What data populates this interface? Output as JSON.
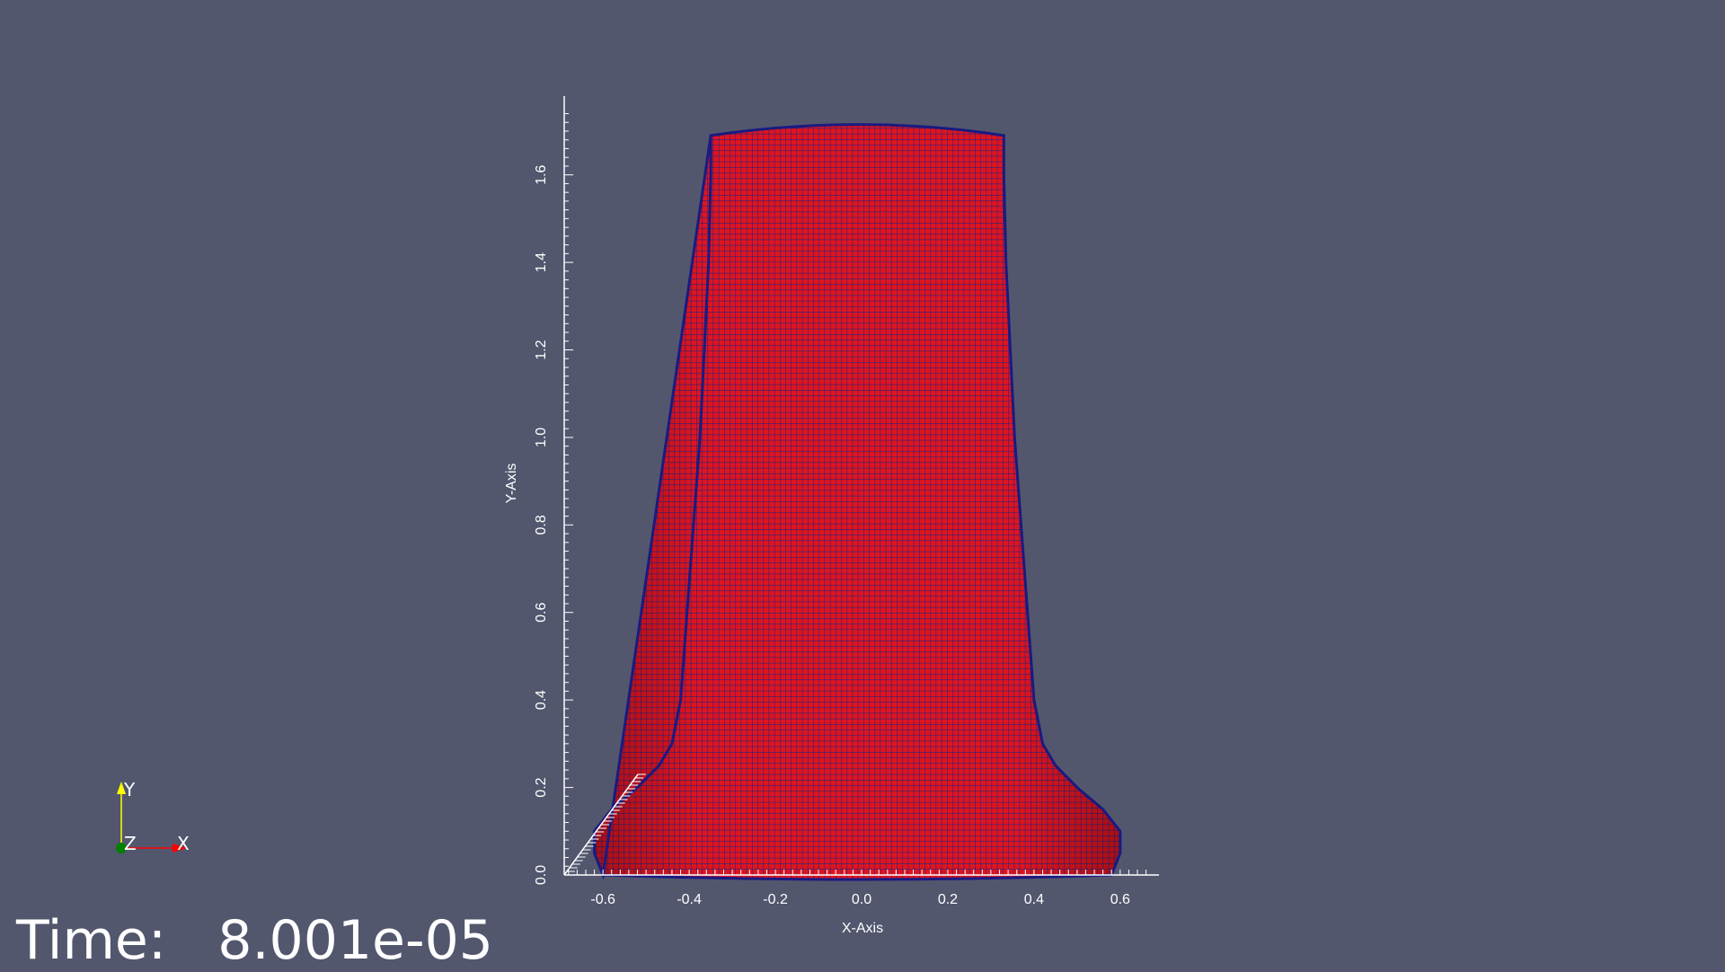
{
  "scene": {
    "background": "#52576e",
    "surface_color": "#e0141e",
    "mesh_line_color": "#1e1e7a",
    "axes_color": "#ffffff"
  },
  "axes": {
    "x_title": "X-Axis",
    "y_title": "Y-Axis",
    "x_tick_labels": [
      "-0.6",
      "-0.4",
      "-0.2",
      "0.0",
      "0.2",
      "0.4",
      "0.6"
    ],
    "y_tick_labels": [
      "0.0",
      "0.2",
      "0.4",
      "0.6",
      "0.8",
      "1.0",
      "1.2",
      "1.4",
      "1.6"
    ],
    "x_range": [
      -0.69,
      0.69
    ],
    "y_range": [
      0.0,
      1.78
    ]
  },
  "orientation_axes": {
    "x_label": "X",
    "y_label": "Y",
    "z_label": "Z",
    "x_color": "#ff0000",
    "y_color": "#ffff00",
    "z_color": "#008000"
  },
  "time": {
    "label": "Time:",
    "value": "8.001e-05"
  }
}
